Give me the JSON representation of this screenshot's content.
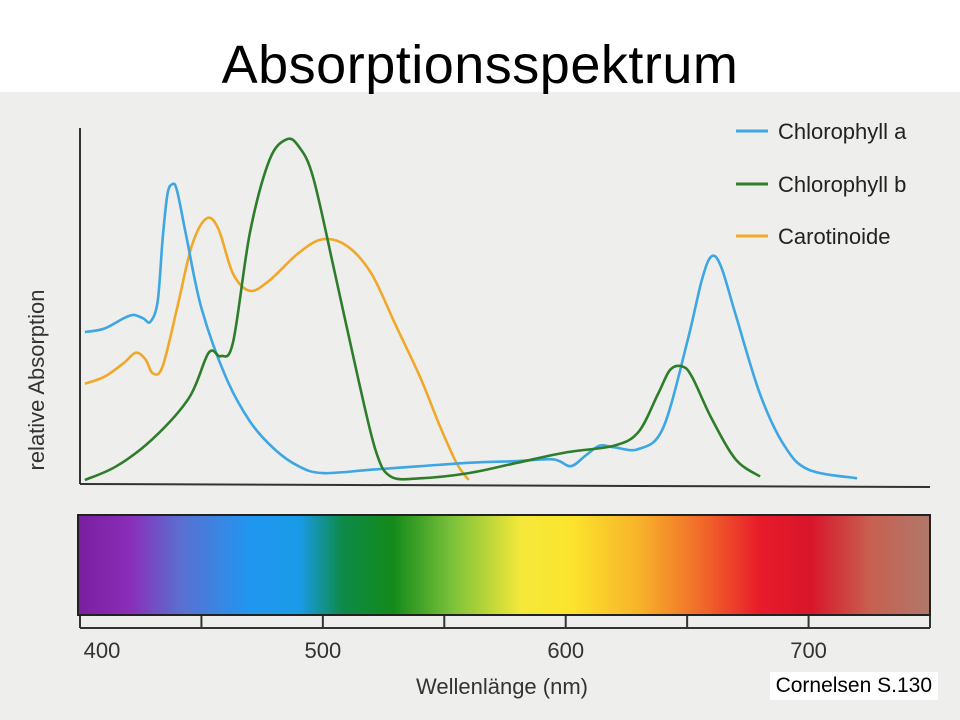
{
  "title": "Absorptionsspektrum",
  "source_note": "Cornelsen S.130",
  "chart_data": {
    "type": "line",
    "title": "",
    "xlabel": "Wellenlänge (nm)",
    "ylabel": "relative Absorption",
    "xlim": [
      400,
      750
    ],
    "ylim": [
      0,
      1
    ],
    "x_ticks": [
      400,
      500,
      600,
      700
    ],
    "x_tick_marks": [
      400,
      450,
      500,
      550,
      600,
      650,
      700,
      750
    ],
    "grid": false,
    "legend_position": "top-right",
    "spectrum_bar": true,
    "series": [
      {
        "name": "Chlorophyll a",
        "color": "#3da6e3",
        "points": [
          [
            402,
            0.43
          ],
          [
            410,
            0.44
          ],
          [
            418,
            0.47
          ],
          [
            422,
            0.48
          ],
          [
            426,
            0.47
          ],
          [
            429,
            0.46
          ],
          [
            432,
            0.52
          ],
          [
            434,
            0.7
          ],
          [
            436,
            0.83
          ],
          [
            438,
            0.86
          ],
          [
            440,
            0.84
          ],
          [
            444,
            0.7
          ],
          [
            450,
            0.5
          ],
          [
            460,
            0.3
          ],
          [
            470,
            0.17
          ],
          [
            480,
            0.09
          ],
          [
            490,
            0.04
          ],
          [
            500,
            0.02
          ],
          [
            520,
            0.03
          ],
          [
            540,
            0.04
          ],
          [
            560,
            0.05
          ],
          [
            580,
            0.055
          ],
          [
            595,
            0.06
          ],
          [
            602,
            0.04
          ],
          [
            608,
            0.07
          ],
          [
            614,
            0.1
          ],
          [
            620,
            0.095
          ],
          [
            630,
            0.09
          ],
          [
            640,
            0.15
          ],
          [
            650,
            0.4
          ],
          [
            656,
            0.58
          ],
          [
            660,
            0.65
          ],
          [
            664,
            0.62
          ],
          [
            670,
            0.48
          ],
          [
            680,
            0.25
          ],
          [
            690,
            0.1
          ],
          [
            700,
            0.03
          ],
          [
            720,
            0.005
          ]
        ]
      },
      {
        "name": "Chlorophyll b",
        "color": "#2e7d2b",
        "points": [
          [
            402,
            0.0
          ],
          [
            415,
            0.04
          ],
          [
            430,
            0.12
          ],
          [
            445,
            0.24
          ],
          [
            453,
            0.37
          ],
          [
            458,
            0.36
          ],
          [
            463,
            0.4
          ],
          [
            470,
            0.72
          ],
          [
            478,
            0.93
          ],
          [
            485,
            0.99
          ],
          [
            490,
            0.97
          ],
          [
            496,
            0.88
          ],
          [
            505,
            0.6
          ],
          [
            515,
            0.28
          ],
          [
            522,
            0.08
          ],
          [
            528,
            0.01
          ],
          [
            540,
            0.005
          ],
          [
            560,
            0.02
          ],
          [
            580,
            0.05
          ],
          [
            600,
            0.08
          ],
          [
            620,
            0.1
          ],
          [
            630,
            0.14
          ],
          [
            638,
            0.25
          ],
          [
            643,
            0.32
          ],
          [
            648,
            0.33
          ],
          [
            652,
            0.3
          ],
          [
            660,
            0.18
          ],
          [
            670,
            0.06
          ],
          [
            680,
            0.01
          ]
        ]
      },
      {
        "name": "Carotinoide",
        "color": "#f0a82a",
        "points": [
          [
            402,
            0.28
          ],
          [
            410,
            0.3
          ],
          [
            418,
            0.34
          ],
          [
            423,
            0.37
          ],
          [
            427,
            0.35
          ],
          [
            430,
            0.31
          ],
          [
            434,
            0.33
          ],
          [
            440,
            0.5
          ],
          [
            446,
            0.68
          ],
          [
            452,
            0.76
          ],
          [
            457,
            0.73
          ],
          [
            463,
            0.6
          ],
          [
            470,
            0.55
          ],
          [
            478,
            0.58
          ],
          [
            490,
            0.66
          ],
          [
            500,
            0.7
          ],
          [
            510,
            0.68
          ],
          [
            520,
            0.6
          ],
          [
            530,
            0.45
          ],
          [
            540,
            0.3
          ],
          [
            548,
            0.16
          ],
          [
            555,
            0.05
          ],
          [
            560,
            0.0
          ]
        ]
      }
    ]
  }
}
